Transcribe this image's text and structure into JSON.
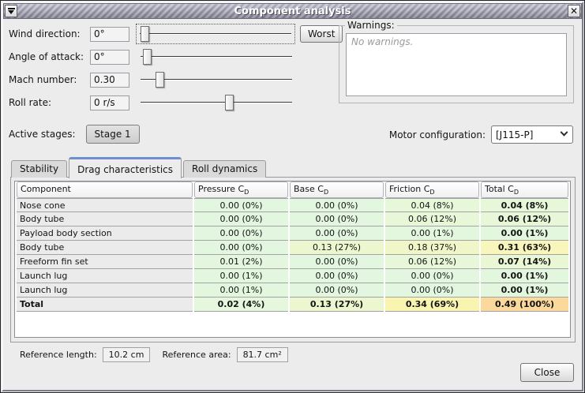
{
  "window": {
    "title": "Component analysis",
    "close_glyph": "✕"
  },
  "controls": {
    "rows": [
      {
        "label": "Wind direction:",
        "value": "0°",
        "thumb_percent": 1
      },
      {
        "label": "Angle of attack:",
        "value": "0°",
        "thumb_percent": 2
      },
      {
        "label": "Mach number:",
        "value": "0.30",
        "thumb_percent": 11
      },
      {
        "label": "Roll rate:",
        "value": "0 r/s",
        "thumb_percent": 60
      }
    ],
    "worst_label": "Worst"
  },
  "warnings": {
    "title": "Warnings:",
    "empty_text": "No warnings."
  },
  "stages": {
    "label": "Active stages:",
    "stage_button": "Stage 1"
  },
  "motor": {
    "label": "Motor configuration:",
    "selected": "[J115-P]"
  },
  "tabs": [
    {
      "label": "Stability",
      "active": false
    },
    {
      "label": "Drag characteristics",
      "active": true
    },
    {
      "label": "Roll dynamics",
      "active": false
    }
  ],
  "drag_table": {
    "headers": [
      {
        "label": "Component",
        "sub": ""
      },
      {
        "label": "Pressure C",
        "sub": "D"
      },
      {
        "label": "Base C",
        "sub": "D"
      },
      {
        "label": "Friction C",
        "sub": "D"
      },
      {
        "label": "Total C",
        "sub": "D"
      }
    ],
    "rows": [
      {
        "name": "Nose cone",
        "bold": false,
        "cells": [
          {
            "text": "0.00 (0%)",
            "bg": "#e3f7e0"
          },
          {
            "text": "0.00 (0%)",
            "bg": "#e3f7e0"
          },
          {
            "text": "0.04 (8%)",
            "bg": "#e6f7da"
          },
          {
            "text": "0.04 (8%)",
            "bg": "#e6f7da"
          }
        ]
      },
      {
        "name": "Body tube",
        "bold": false,
        "cells": [
          {
            "text": "0.00 (0%)",
            "bg": "#e3f7e0"
          },
          {
            "text": "0.00 (0%)",
            "bg": "#e3f7e0"
          },
          {
            "text": "0.06 (12%)",
            "bg": "#e8f7d7"
          },
          {
            "text": "0.06 (12%)",
            "bg": "#e8f7d7"
          }
        ]
      },
      {
        "name": "Payload body section",
        "bold": false,
        "cells": [
          {
            "text": "0.00 (0%)",
            "bg": "#e3f7e0"
          },
          {
            "text": "0.00 (0%)",
            "bg": "#e3f7e0"
          },
          {
            "text": "0.00 (1%)",
            "bg": "#e3f7df"
          },
          {
            "text": "0.00 (1%)",
            "bg": "#e3f7df"
          }
        ]
      },
      {
        "name": "Body tube",
        "bold": false,
        "cells": [
          {
            "text": "0.00 (0%)",
            "bg": "#e3f7e0"
          },
          {
            "text": "0.13 (27%)",
            "bg": "#edf7cf"
          },
          {
            "text": "0.18 (37%)",
            "bg": "#f1f6c8"
          },
          {
            "text": "0.31 (63%)",
            "bg": "#f8f6ba"
          }
        ]
      },
      {
        "name": "Freeform fin set",
        "bold": false,
        "cells": [
          {
            "text": "0.01 (2%)",
            "bg": "#e4f7de"
          },
          {
            "text": "0.00 (0%)",
            "bg": "#e3f7e0"
          },
          {
            "text": "0.06 (12%)",
            "bg": "#e8f7d7"
          },
          {
            "text": "0.07 (14%)",
            "bg": "#e9f7d5"
          }
        ]
      },
      {
        "name": "Launch lug",
        "bold": false,
        "cells": [
          {
            "text": "0.00 (1%)",
            "bg": "#e3f7df"
          },
          {
            "text": "0.00 (0%)",
            "bg": "#e3f7e0"
          },
          {
            "text": "0.00 (0%)",
            "bg": "#e3f7e0"
          },
          {
            "text": "0.00 (1%)",
            "bg": "#e3f7df"
          }
        ]
      },
      {
        "name": "Launch lug",
        "bold": false,
        "cells": [
          {
            "text": "0.00 (1%)",
            "bg": "#e3f7df"
          },
          {
            "text": "0.00 (0%)",
            "bg": "#e3f7e0"
          },
          {
            "text": "0.00 (0%)",
            "bg": "#e3f7e0"
          },
          {
            "text": "0.00 (1%)",
            "bg": "#e3f7df"
          }
        ]
      },
      {
        "name": "Total",
        "bold": true,
        "cells": [
          {
            "text": "0.02 (4%)",
            "bg": "#e5f7dc"
          },
          {
            "text": "0.13 (27%)",
            "bg": "#edf7cf"
          },
          {
            "text": "0.34 (69%)",
            "bg": "#f9f4b0"
          },
          {
            "text": "0.49 (100%)",
            "bg": "#fbd89c"
          }
        ]
      }
    ]
  },
  "footer": {
    "ref_length_label": "Reference length:",
    "ref_length_value": "10.2 cm",
    "ref_area_label": "Reference area:",
    "ref_area_value": "81.7 cm²",
    "close_label": "Close"
  },
  "colors": {
    "tab_accent": "#6c8fce",
    "cell_green": "#e3f7e0",
    "cell_yellow": "#f8f6ba",
    "cell_orange": "#fbd89c"
  }
}
